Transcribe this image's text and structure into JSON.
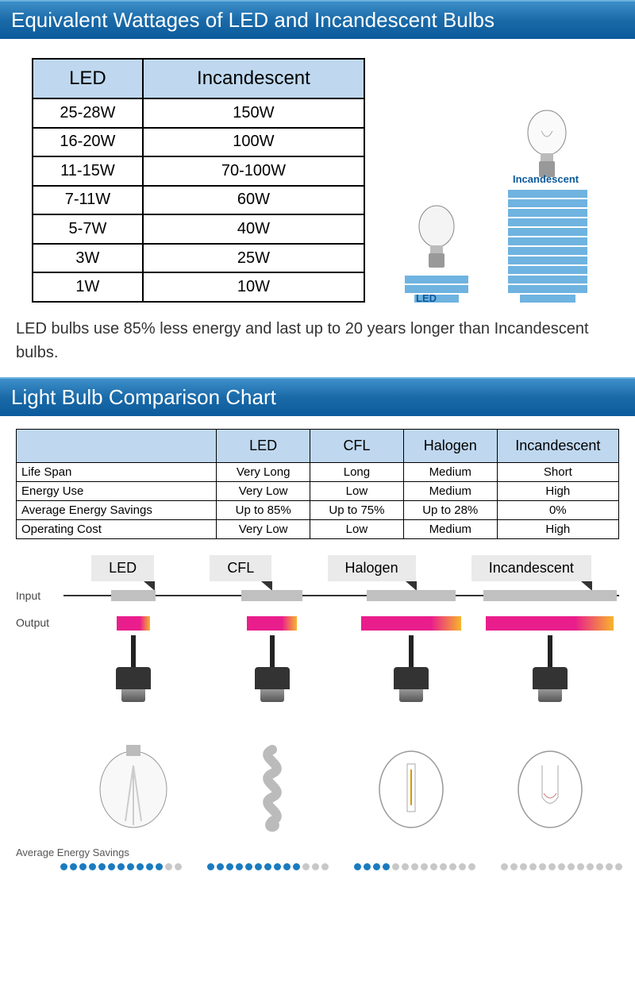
{
  "banner1": "Equivalent Wattages of LED and Incandescent Bulbs",
  "wattage": {
    "headers": [
      "LED",
      "Incandescent"
    ],
    "rows": [
      [
        "25-28W",
        "150W"
      ],
      [
        "16-20W",
        "100W"
      ],
      [
        "11-15W",
        "70-100W"
      ],
      [
        "7-11W",
        "60W"
      ],
      [
        "5-7W",
        "40W"
      ],
      [
        "3W",
        "25W"
      ],
      [
        "1W",
        "10W"
      ]
    ]
  },
  "barchart": {
    "led_label": "LED",
    "inc_label": "Incandescent",
    "led_bars": 3,
    "inc_bars": 12,
    "bar_color": "#6fb3e0",
    "label_color": "#0b5a9c"
  },
  "callout": "LED bulbs use 85% less energy and last up to 20 years longer than Incandescent bulbs.",
  "banner2": "Light Bulb Comparison Chart",
  "comparison": {
    "headers": [
      "",
      "LED",
      "CFL",
      "Halogen",
      "Incandescent"
    ],
    "rows": [
      {
        "label": "Life Span",
        "cells": [
          "Very Long",
          "Long",
          "Medium",
          "Short"
        ]
      },
      {
        "label": "Energy Use",
        "cells": [
          "Very Low",
          "Low",
          "Medium",
          "High"
        ]
      },
      {
        "label": "Average Energy Savings",
        "cells": [
          "Up to 85%",
          "Up to 75%",
          "Up to 28%",
          "0%"
        ]
      },
      {
        "label": "Operating Cost",
        "cells": [
          "Very Low",
          "Low",
          "Medium",
          "High"
        ]
      }
    ]
  },
  "io": {
    "types": [
      "LED",
      "CFL",
      "Halogen",
      "Incandescent"
    ],
    "input_label": "Input",
    "output_label": "Output",
    "input_widths_pct": [
      8,
      11,
      16,
      24
    ],
    "output_widths_pct": [
      6,
      9,
      18,
      23
    ],
    "input_color": "#c0c0c0",
    "output_gradient": [
      "#e91e8c",
      "#f7b52c"
    ]
  },
  "aes": {
    "label": "Average Energy Savings",
    "total_dots": 13,
    "filled": [
      11,
      10,
      4,
      0
    ],
    "dot_on_color": "#1a7bbf",
    "dot_off_color": "#c8c8c8"
  },
  "colors": {
    "banner_gradient": [
      "#3d8fc9",
      "#0b5a9c"
    ],
    "table_header_bg": "#bfd8ef",
    "border": "#000000"
  }
}
